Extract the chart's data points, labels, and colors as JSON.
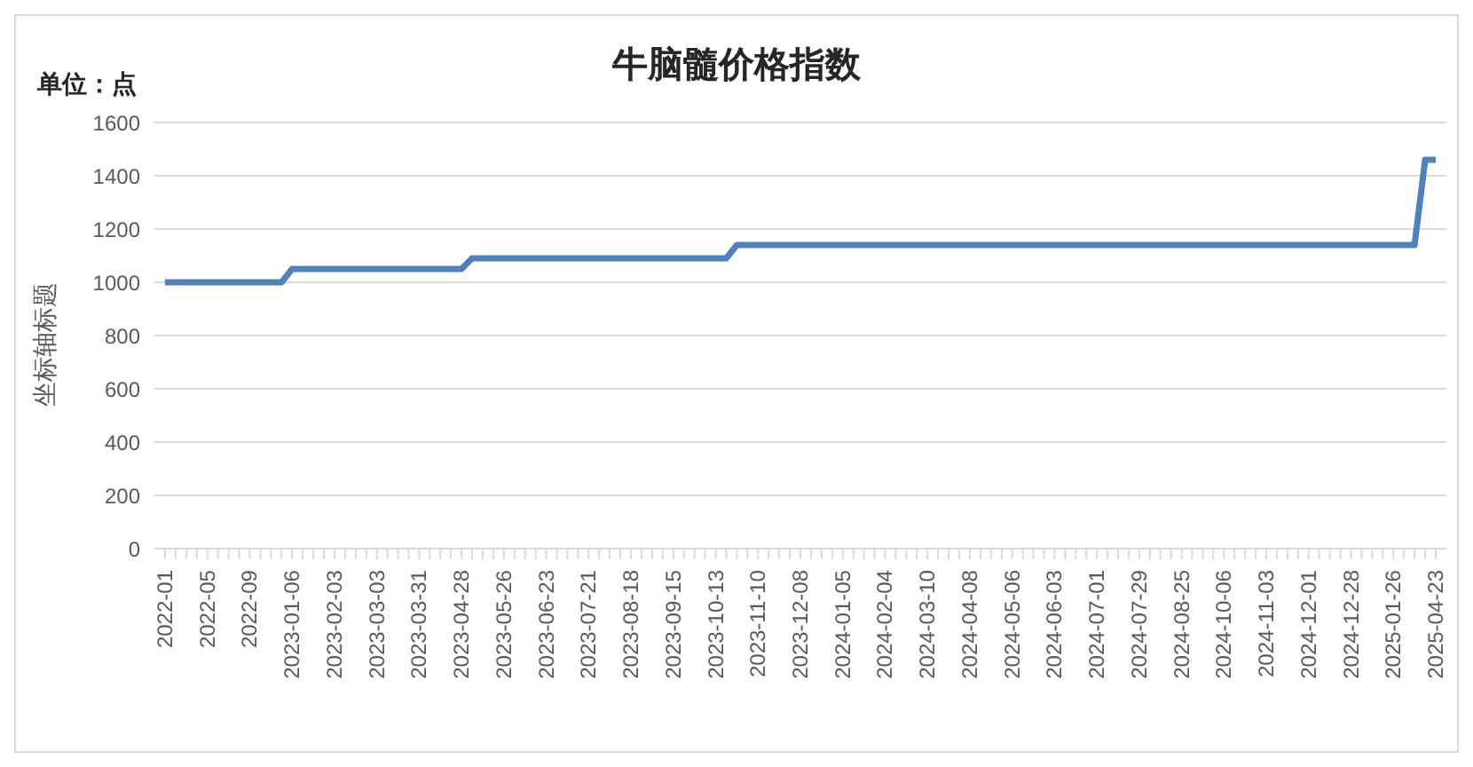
{
  "chart_data": {
    "type": "line",
    "title": "牛脑髓价格指数",
    "ylabel": "坐标轴标题",
    "annotations": [
      "单位：点"
    ],
    "categories": [
      "2022-01",
      null,
      null,
      null,
      "2022-05",
      null,
      null,
      null,
      "2022-09",
      null,
      null,
      null,
      "2023-01-06",
      null,
      null,
      null,
      "2023-02-03",
      null,
      null,
      null,
      "2023-03-03",
      null,
      null,
      null,
      "2023-03-31",
      null,
      null,
      null,
      "2023-04-28",
      null,
      null,
      null,
      "2023-05-26",
      null,
      null,
      null,
      "2023-06-23",
      null,
      null,
      null,
      "2023-07-21",
      null,
      null,
      null,
      "2023-08-18",
      null,
      null,
      null,
      "2023-09-15",
      null,
      null,
      null,
      "2023-10-13",
      null,
      null,
      null,
      "2023-11-10",
      null,
      null,
      null,
      "2023-12-08",
      null,
      null,
      null,
      "2024-01-05",
      null,
      null,
      null,
      "2024-02-04",
      null,
      null,
      null,
      "2024-03-10",
      null,
      null,
      null,
      "2024-04-08",
      null,
      null,
      null,
      "2024-05-06",
      null,
      null,
      null,
      "2024-06-03",
      null,
      null,
      null,
      "2024-07-01",
      null,
      null,
      null,
      "2024-07-29",
      null,
      null,
      null,
      "2024-08-25",
      null,
      null,
      null,
      "2024-10-06",
      null,
      null,
      null,
      "2024-11-03",
      null,
      null,
      null,
      "2024-12-01",
      null,
      null,
      null,
      "2024-12-28",
      null,
      null,
      null,
      "2025-01-26",
      null,
      null,
      null,
      "2025-04-23"
    ],
    "series": [
      {
        "color": "#4f81bd",
        "values": [
          1000,
          1000,
          1000,
          1000,
          1000,
          1000,
          1000,
          1000,
          1000,
          1000,
          1000,
          1000,
          1050,
          1050,
          1050,
          1050,
          1050,
          1050,
          1050,
          1050,
          1050,
          1050,
          1050,
          1050,
          1050,
          1050,
          1050,
          1050,
          1050,
          1090,
          1090,
          1090,
          1090,
          1090,
          1090,
          1090,
          1090,
          1090,
          1090,
          1090,
          1090,
          1090,
          1090,
          1090,
          1090,
          1090,
          1090,
          1090,
          1090,
          1090,
          1090,
          1090,
          1090,
          1090,
          1140,
          1140,
          1140,
          1140,
          1140,
          1140,
          1140,
          1140,
          1140,
          1140,
          1140,
          1140,
          1140,
          1140,
          1140,
          1140,
          1140,
          1140,
          1140,
          1140,
          1140,
          1140,
          1140,
          1140,
          1140,
          1140,
          1140,
          1140,
          1140,
          1140,
          1140,
          1140,
          1140,
          1140,
          1140,
          1140,
          1140,
          1140,
          1140,
          1140,
          1140,
          1140,
          1140,
          1140,
          1140,
          1140,
          1140,
          1140,
          1140,
          1140,
          1140,
          1140,
          1140,
          1140,
          1140,
          1140,
          1140,
          1140,
          1140,
          1140,
          1140,
          1140,
          1140,
          1140,
          1140,
          1460,
          1460
        ]
      }
    ],
    "ylim": [
      0,
      1600
    ],
    "yticks": [
      0,
      200,
      400,
      600,
      800,
      1000,
      1200,
      1400,
      1600
    ],
    "grid": "y"
  }
}
